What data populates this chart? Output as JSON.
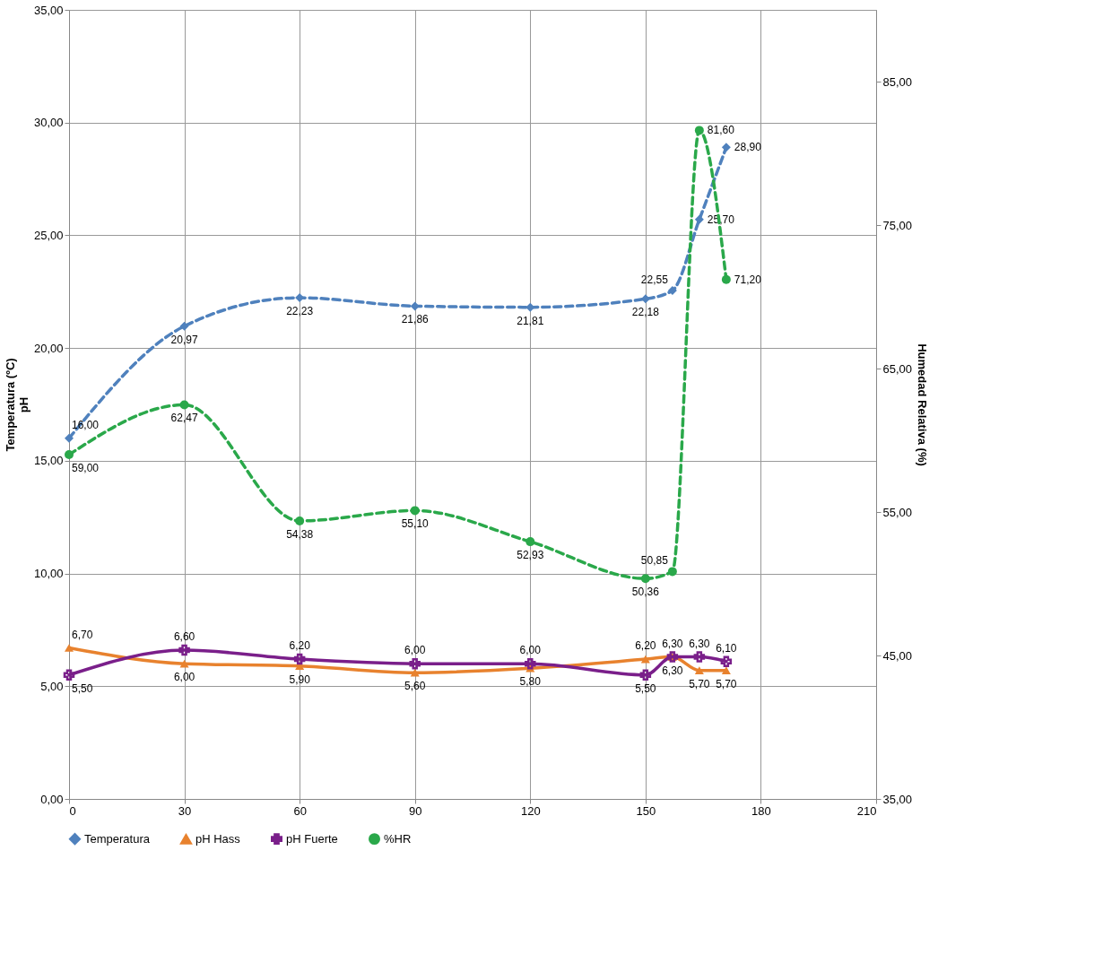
{
  "chart_data": {
    "type": "line",
    "xlabel": null,
    "ylabel": "Temperatura (ºC)\npH",
    "y2label": "Humedad Relativa (%)",
    "x": [
      0,
      30,
      60,
      90,
      120,
      150,
      157,
      164,
      171
    ],
    "xlim": [
      0,
      210
    ],
    "xticks": [
      0,
      30,
      60,
      90,
      120,
      150,
      180,
      210
    ],
    "ylim": [
      0,
      35
    ],
    "yticks": [
      {
        "value": 0,
        "label": "0,00"
      },
      {
        "value": 5,
        "label": "5,00"
      },
      {
        "value": 10,
        "label": "10,00"
      },
      {
        "value": 15,
        "label": "15,00"
      },
      {
        "value": 20,
        "label": "20,00"
      },
      {
        "value": 25,
        "label": "25,00"
      },
      {
        "value": 30,
        "label": "30,00"
      },
      {
        "value": 35,
        "label": "35,00"
      }
    ],
    "y2lim": [
      35,
      90
    ],
    "y2ticks": [
      {
        "value": 35,
        "label": "35,00"
      },
      {
        "value": 45,
        "label": "45,00"
      },
      {
        "value": 55,
        "label": "55,00"
      },
      {
        "value": 65,
        "label": "65,00"
      },
      {
        "value": 75,
        "label": "75,00"
      },
      {
        "value": 85,
        "label": "85,00"
      }
    ],
    "grid": true,
    "legend": "bottom",
    "series": [
      {
        "name": "Temperatura",
        "color": "#4f81bd",
        "marker": "diamond",
        "line_style": "dashed",
        "values": [
          16.0,
          20.97,
          22.23,
          21.86,
          21.81,
          22.18,
          22.55,
          25.7,
          28.9
        ],
        "value_labels": [
          "16,00",
          "20,97",
          "22,23",
          "21,86",
          "21,81",
          "22,18",
          "22,55",
          "25,70",
          "28,90"
        ]
      },
      {
        "name": "pH Hass",
        "color": "#e8822e",
        "marker": "triangle",
        "line_style": "solid",
        "values": [
          6.7,
          6.0,
          5.9,
          5.6,
          5.8,
          6.2,
          6.3,
          5.7,
          5.7
        ],
        "value_labels": [
          "6,70",
          "6,00",
          "5,90",
          "5,60",
          "5,80",
          "6,20",
          "6,30",
          "5,70",
          "5,70"
        ]
      },
      {
        "name": "pH Fuerte",
        "color": "#7a1f8a",
        "marker": "cross",
        "line_style": "solid",
        "values": [
          5.5,
          6.6,
          6.2,
          6.0,
          6.0,
          5.5,
          6.3,
          6.3,
          6.1
        ],
        "value_labels": [
          "5,50",
          "6,60",
          "6,20",
          "6,00",
          "6,00",
          "5,50",
          "6,30",
          "6,30",
          "6,10"
        ]
      },
      {
        "name": "%HR",
        "color": "#2aa84a",
        "marker": "circle",
        "line_style": "dashed",
        "axis": "y2",
        "values": [
          59.0,
          62.47,
          54.38,
          55.1,
          52.93,
          50.36,
          50.85,
          81.6,
          71.2
        ],
        "value_labels": [
          "59,00",
          "62,47",
          "54,38",
          "55,10",
          "52,93",
          "50,36",
          "50,85",
          "81,60",
          "71,20"
        ]
      }
    ]
  }
}
